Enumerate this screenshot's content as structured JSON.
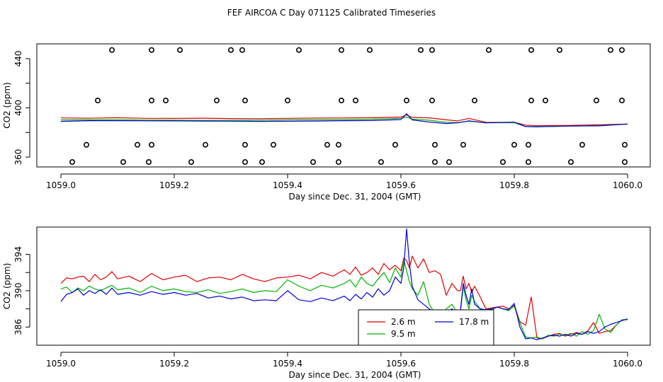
{
  "figure_title": "FEF AIRCOA C  Day 071125  Calibrated Timeseries",
  "colors": {
    "h26": "#e00000",
    "h95": "#00b400",
    "h178": "#0000d8"
  },
  "chart_data": [
    {
      "type": "scatter+line",
      "title": "",
      "xlabel": "Day since Dec. 31, 2004 (GMT)",
      "ylabel": "CO2 (ppm)",
      "xlim": [
        1059.0,
        1060.0
      ],
      "ylim": [
        352,
        452
      ],
      "xticks": [
        1059.0,
        1059.2,
        1059.4,
        1059.6,
        1059.8,
        1060.0
      ],
      "xtick_labels": [
        "1059.0",
        "1059.2",
        "1059.4",
        "1059.6",
        "1059.8",
        "1060.0"
      ],
      "yticks": [
        360,
        380,
        400,
        420,
        440
      ],
      "ytick_labels": [
        "360",
        "",
        "400",
        "",
        "440"
      ],
      "calibration_points": {
        "x": [
          1059.09,
          1059.16,
          1059.21,
          1059.3,
          1059.32,
          1059.42,
          1059.495,
          1059.545,
          1059.635,
          1059.655,
          1059.755,
          1059.83,
          1059.88,
          1059.97,
          1059.99,
          1059.065,
          1059.16,
          1059.185,
          1059.275,
          1059.325,
          1059.4,
          1059.495,
          1059.52,
          1059.61,
          1059.655,
          1059.73,
          1059.83,
          1059.855,
          1059.945,
          1059.99,
          1059.045,
          1059.135,
          1059.16,
          1059.255,
          1059.325,
          1059.375,
          1059.47,
          1059.49,
          1059.59,
          1059.66,
          1059.71,
          1059.8,
          1059.825,
          1059.92,
          1059.995,
          1059.02,
          1059.11,
          1059.155,
          1059.23,
          1059.325,
          1059.355,
          1059.445,
          1059.49,
          1059.565,
          1059.66,
          1059.685,
          1059.78,
          1059.825,
          1059.9,
          1059.995
        ],
        "y": [
          447,
          447,
          447,
          447,
          447,
          447,
          447,
          447,
          447,
          447,
          447,
          447,
          447,
          447,
          447,
          406,
          406,
          406,
          406,
          406,
          406,
          406,
          406,
          406,
          406,
          406,
          406,
          406,
          406,
          406,
          370,
          370,
          370,
          370,
          370,
          370,
          370,
          370,
          370,
          370,
          370,
          370,
          370,
          370,
          370,
          356,
          356,
          356,
          356,
          356,
          356,
          356,
          356,
          356,
          356,
          356,
          356,
          356,
          356,
          356
        ]
      },
      "series": [
        {
          "name": "2.6 m",
          "x": [
            1059.0,
            1059.05,
            1059.1,
            1059.15,
            1059.2,
            1059.25,
            1059.3,
            1059.35,
            1059.4,
            1059.45,
            1059.5,
            1059.55,
            1059.6,
            1059.61,
            1059.62,
            1059.65,
            1059.68,
            1059.7,
            1059.72,
            1059.75,
            1059.8,
            1059.82,
            1059.84,
            1059.9,
            1059.95,
            1060.0
          ],
          "y": [
            391.8,
            391.6,
            392,
            391.5,
            391.4,
            391.6,
            391.3,
            391.2,
            391.5,
            391.7,
            391.8,
            392,
            392.5,
            394.2,
            392.3,
            391.9,
            390.3,
            389.5,
            391.4,
            388.3,
            388.2,
            386,
            385.5,
            385.8,
            386.3,
            386.8
          ]
        },
        {
          "name": "9.5 m",
          "x": [
            1059.0,
            1059.05,
            1059.1,
            1059.15,
            1059.2,
            1059.25,
            1059.3,
            1059.35,
            1059.4,
            1059.45,
            1059.5,
            1059.55,
            1059.6,
            1059.61,
            1059.62,
            1059.65,
            1059.68,
            1059.7,
            1059.72,
            1059.75,
            1059.8,
            1059.82,
            1059.84,
            1059.9,
            1059.95,
            1060.0
          ],
          "y": [
            390.2,
            390.3,
            390.4,
            390.1,
            390,
            389.8,
            389.9,
            390,
            390.3,
            390.3,
            390.5,
            390.8,
            391.5,
            392.5,
            390.9,
            390,
            388.3,
            388.1,
            389.2,
            387.9,
            388,
            384.8,
            384.8,
            385.2,
            385.6,
            386.8
          ]
        },
        {
          "name": "17.8 m",
          "x": [
            1059.0,
            1059.05,
            1059.1,
            1059.15,
            1059.2,
            1059.25,
            1059.3,
            1059.35,
            1059.4,
            1059.45,
            1059.5,
            1059.55,
            1059.6,
            1059.61,
            1059.62,
            1059.65,
            1059.68,
            1059.7,
            1059.72,
            1059.75,
            1059.8,
            1059.82,
            1059.84,
            1059.9,
            1059.95,
            1060.0
          ],
          "y": [
            389,
            389.6,
            389.6,
            389.5,
            389.4,
            389.3,
            389.2,
            389,
            389.1,
            389.3,
            389.6,
            389.7,
            390.5,
            395.2,
            390.2,
            388.5,
            387.3,
            387.8,
            389.5,
            387.8,
            388.4,
            384.8,
            384.6,
            385.2,
            385.4,
            386.9
          ]
        }
      ]
    },
    {
      "type": "line",
      "title": "",
      "xlabel": "Day since Dec. 31, 2004 (GMT)",
      "ylabel": "CO2 (ppm)",
      "xlim": [
        1059.0,
        1060.0
      ],
      "ylim": [
        384,
        397
      ],
      "xticks": [
        1059.0,
        1059.2,
        1059.4,
        1059.6,
        1059.8,
        1060.0
      ],
      "xtick_labels": [
        "1059.0",
        "1059.2",
        "1059.4",
        "1059.6",
        "1059.8",
        "1060.0"
      ],
      "yticks": [
        386,
        388,
        390,
        392,
        394
      ],
      "ytick_labels": [
        "386",
        "",
        "390",
        "",
        "394"
      ],
      "legend": {
        "position": "bottom-center",
        "entries": [
          "2.6 m",
          "9.5 m",
          "17.8 m"
        ]
      },
      "series": [
        {
          "name": "2.6 m",
          "x": [
            1059.0,
            1059.01,
            1059.02,
            1059.03,
            1059.04,
            1059.05,
            1059.06,
            1059.07,
            1059.08,
            1059.09,
            1059.1,
            1059.12,
            1059.14,
            1059.16,
            1059.18,
            1059.2,
            1059.22,
            1059.24,
            1059.26,
            1059.28,
            1059.3,
            1059.32,
            1059.34,
            1059.36,
            1059.38,
            1059.4,
            1059.42,
            1059.44,
            1059.46,
            1059.48,
            1059.5,
            1059.51,
            1059.52,
            1059.53,
            1059.54,
            1059.55,
            1059.56,
            1059.57,
            1059.58,
            1059.59,
            1059.6,
            1059.605,
            1059.61,
            1059.615,
            1059.62,
            1059.63,
            1059.64,
            1059.65,
            1059.66,
            1059.67,
            1059.68,
            1059.69,
            1059.7,
            1059.705,
            1059.71,
            1059.715,
            1059.72,
            1059.725,
            1059.73,
            1059.74,
            1059.75,
            1059.76,
            1059.77,
            1059.78,
            1059.79,
            1059.8,
            1059.81,
            1059.82,
            1059.83,
            1059.84,
            1059.85,
            1059.86,
            1059.87,
            1059.88,
            1059.89,
            1059.9,
            1059.91,
            1059.92,
            1059.93,
            1059.94,
            1059.95,
            1059.96,
            1059.97,
            1059.98,
            1059.99,
            1060.0
          ],
          "y": [
            390.8,
            391.4,
            391.3,
            391.5,
            391.6,
            391.0,
            391.8,
            391.2,
            391.5,
            392.1,
            391.3,
            391.6,
            391.0,
            391.9,
            391.2,
            391.5,
            391.7,
            391.0,
            391.4,
            391.5,
            391.2,
            391.8,
            391.3,
            391.0,
            391.4,
            391.5,
            391.7,
            391.3,
            392.0,
            391.6,
            392.3,
            391.8,
            392.6,
            391.7,
            392.0,
            392.5,
            391.8,
            393.0,
            392.3,
            392.8,
            392.2,
            393.6,
            393.3,
            392.5,
            393.8,
            392.5,
            393.5,
            392.0,
            392.2,
            391.8,
            389.5,
            390.8,
            390.0,
            390.0,
            391.6,
            390.2,
            390.8,
            389.8,
            390.5,
            389.3,
            388.0,
            388.1,
            388.2,
            388.3,
            388.0,
            388.4,
            386.6,
            386.2,
            389.3,
            384.8,
            384.7,
            385.0,
            385.2,
            385.3,
            385.0,
            385.2,
            385.4,
            385.2,
            385.6,
            386.5,
            385.3,
            385.5,
            385.6,
            386.2,
            386.8,
            386.8
          ]
        },
        {
          "name": "9.5 m",
          "x": [
            1059.0,
            1059.01,
            1059.02,
            1059.03,
            1059.04,
            1059.05,
            1059.06,
            1059.07,
            1059.08,
            1059.09,
            1059.1,
            1059.12,
            1059.14,
            1059.16,
            1059.18,
            1059.2,
            1059.22,
            1059.24,
            1059.26,
            1059.28,
            1059.3,
            1059.32,
            1059.34,
            1059.36,
            1059.38,
            1059.4,
            1059.42,
            1059.44,
            1059.46,
            1059.48,
            1059.5,
            1059.51,
            1059.52,
            1059.53,
            1059.54,
            1059.55,
            1059.56,
            1059.57,
            1059.58,
            1059.59,
            1059.6,
            1059.605,
            1059.61,
            1059.615,
            1059.62,
            1059.63,
            1059.64,
            1059.65,
            1059.66,
            1059.67,
            1059.68,
            1059.69,
            1059.7,
            1059.705,
            1059.71,
            1059.715,
            1059.72,
            1059.725,
            1059.73,
            1059.74,
            1059.75,
            1059.76,
            1059.77,
            1059.78,
            1059.79,
            1059.8,
            1059.81,
            1059.82,
            1059.83,
            1059.84,
            1059.85,
            1059.86,
            1059.87,
            1059.88,
            1059.89,
            1059.9,
            1059.91,
            1059.92,
            1059.93,
            1059.94,
            1059.95,
            1059.96,
            1059.97,
            1059.98,
            1059.99,
            1060.0
          ],
          "y": [
            390.2,
            390.4,
            389.8,
            390.3,
            390.0,
            390.5,
            390.2,
            390.0,
            390.3,
            390.6,
            390.1,
            390.3,
            389.8,
            390.5,
            390.0,
            390.2,
            389.9,
            389.8,
            390.1,
            389.7,
            389.9,
            390.2,
            389.8,
            390.0,
            389.9,
            391.2,
            390.5,
            390.0,
            390.6,
            390.3,
            390.8,
            391.2,
            390.4,
            391.5,
            390.8,
            390.5,
            391.3,
            392.0,
            390.9,
            392.5,
            391.5,
            393.5,
            392.2,
            391.0,
            390.2,
            389.5,
            391.0,
            388.5,
            387.5,
            387.0,
            388.0,
            388.5,
            387.5,
            387.6,
            390.5,
            389.0,
            388.0,
            389.5,
            388.8,
            388.0,
            387.8,
            387.9,
            388.2,
            388.0,
            387.8,
            388.3,
            386.5,
            384.9,
            384.8,
            384.9,
            384.7,
            385.1,
            385.0,
            385.2,
            385.1,
            385.3,
            385.0,
            385.5,
            385.2,
            385.6,
            387.4,
            385.8,
            385.4,
            386.2,
            386.8,
            386.8
          ]
        },
        {
          "name": "17.8 m",
          "x": [
            1059.0,
            1059.01,
            1059.02,
            1059.03,
            1059.04,
            1059.05,
            1059.06,
            1059.07,
            1059.08,
            1059.09,
            1059.1,
            1059.12,
            1059.14,
            1059.16,
            1059.18,
            1059.2,
            1059.22,
            1059.24,
            1059.26,
            1059.28,
            1059.3,
            1059.32,
            1059.34,
            1059.36,
            1059.38,
            1059.4,
            1059.42,
            1059.44,
            1059.46,
            1059.48,
            1059.5,
            1059.51,
            1059.52,
            1059.53,
            1059.54,
            1059.55,
            1059.56,
            1059.57,
            1059.58,
            1059.59,
            1059.6,
            1059.605,
            1059.61,
            1059.615,
            1059.62,
            1059.63,
            1059.64,
            1059.65,
            1059.66,
            1059.67,
            1059.68,
            1059.69,
            1059.7,
            1059.705,
            1059.71,
            1059.715,
            1059.72,
            1059.725,
            1059.73,
            1059.74,
            1059.75,
            1059.76,
            1059.77,
            1059.78,
            1059.79,
            1059.8,
            1059.81,
            1059.82,
            1059.83,
            1059.84,
            1059.85,
            1059.86,
            1059.87,
            1059.88,
            1059.89,
            1059.9,
            1059.91,
            1059.92,
            1059.93,
            1059.94,
            1059.95,
            1059.96,
            1059.97,
            1059.98,
            1059.99,
            1060.0
          ],
          "y": [
            388.8,
            389.6,
            389.8,
            390.2,
            389.5,
            390.0,
            389.7,
            390.1,
            389.6,
            390.3,
            389.6,
            389.8,
            389.5,
            389.9,
            389.6,
            389.8,
            389.5,
            389.7,
            389.2,
            389.4,
            389.1,
            389.3,
            388.9,
            389.0,
            388.9,
            390.0,
            389.0,
            388.8,
            389.2,
            388.9,
            389.4,
            388.9,
            389.6,
            389.1,
            389.8,
            389.3,
            390.2,
            389.5,
            390.0,
            391.5,
            390.8,
            392.5,
            396.8,
            393.0,
            390.5,
            389.0,
            388.5,
            388.0,
            387.6,
            387.0,
            387.5,
            388.0,
            387.5,
            387.8,
            390.8,
            389.5,
            388.5,
            390.2,
            388.5,
            388.0,
            387.9,
            388.0,
            388.2,
            388.0,
            387.9,
            388.6,
            386.0,
            384.7,
            384.8,
            384.6,
            384.8,
            385.0,
            385.1,
            385.0,
            385.2,
            385.0,
            385.3,
            385.2,
            385.5,
            385.3,
            385.5,
            386.0,
            386.3,
            386.5,
            386.7,
            386.9
          ]
        }
      ]
    }
  ]
}
